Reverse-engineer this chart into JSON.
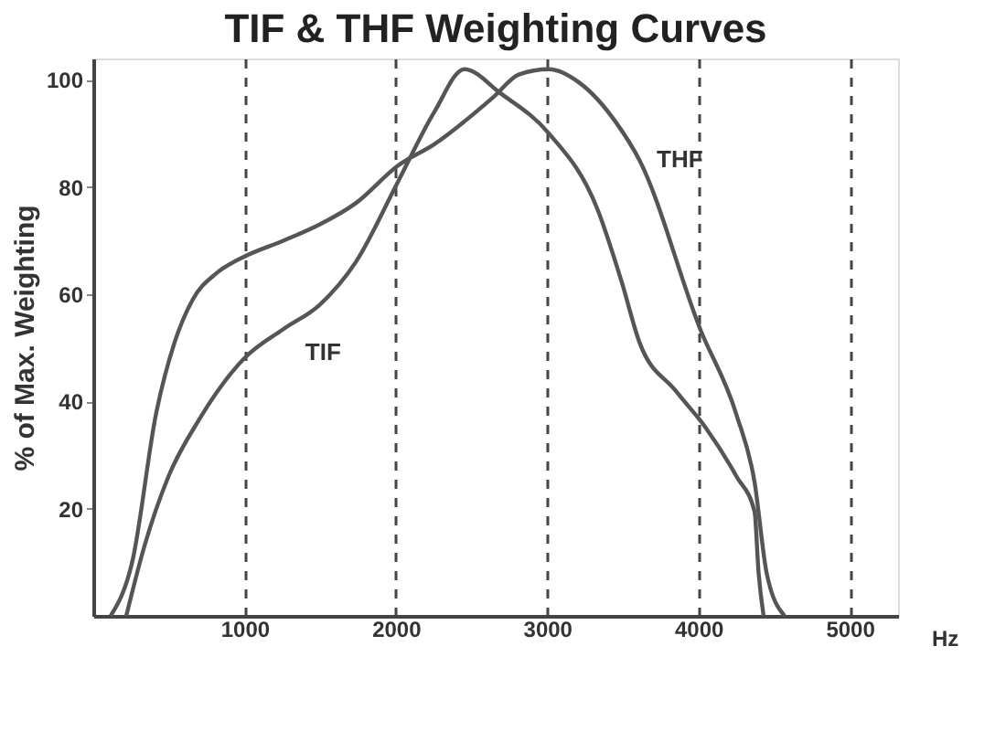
{
  "chart_data": {
    "type": "line",
    "title": "TIF & THF Weighting Curves",
    "xlabel": "Hz",
    "ylabel": "% of Max. Weighting",
    "xlim": [
      0,
      5320
    ],
    "ylim": [
      0,
      104
    ],
    "xticks": [
      1000,
      2000,
      3000,
      4000,
      5000
    ],
    "yticks": [
      20,
      40,
      60,
      80,
      100
    ],
    "grid": "x",
    "marker": "none",
    "line_style": "solid",
    "series": [
      {
        "name": "THF",
        "color": "#555555",
        "x": [
          115,
          257,
          417,
          537,
          657,
          817,
          996,
          1256,
          1495,
          1735,
          2014,
          2254,
          2653,
          2812,
          3012,
          3212,
          3457,
          3611,
          4012,
          4252,
          4371,
          4451,
          4569
        ],
        "values": [
          0,
          10,
          38,
          51,
          59,
          64,
          67,
          70,
          73,
          77,
          84,
          88,
          97,
          101,
          102,
          99.5,
          92,
          85,
          53.5,
          37.5,
          25,
          8,
          0
        ]
      },
      {
        "name": "TIF",
        "color": "#555555",
        "x": [
          218,
          338,
          497,
          697,
          996,
          1256,
          1495,
          1735,
          2014,
          2254,
          2453,
          2692,
          3012,
          3331,
          3491,
          3611,
          3850,
          4051,
          4252,
          4371,
          4398,
          4431
        ],
        "values": [
          0,
          13,
          26,
          36.5,
          48,
          53.5,
          58,
          66,
          81,
          94,
          102,
          97.5,
          90,
          76,
          62.5,
          51,
          42,
          35,
          26,
          19.5,
          8,
          0
        ]
      }
    ]
  }
}
